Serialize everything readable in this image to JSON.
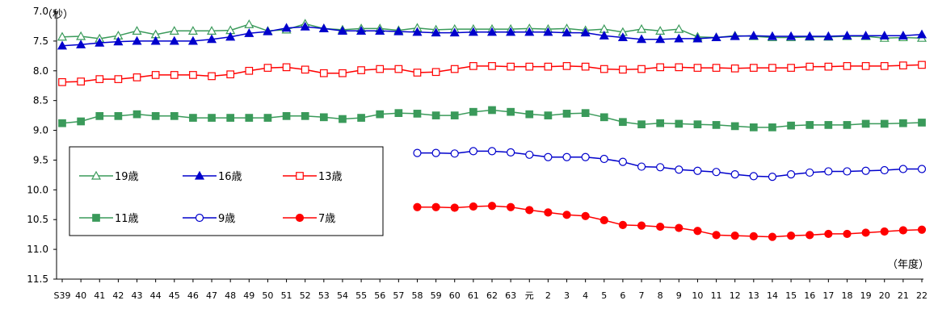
{
  "chart_data": {
    "type": "line",
    "ylabel": "（秒）",
    "xlabel": "（年度）",
    "ylim": [
      7.0,
      11.5
    ],
    "y_inverted": true,
    "y_ticks": [
      "7.0",
      "7.5",
      "8.0",
      "8.5",
      "9.0",
      "9.5",
      "10.0",
      "10.5",
      "11.0",
      "11.5"
    ],
    "categories": [
      "S39",
      "40",
      "41",
      "42",
      "43",
      "44",
      "45",
      "46",
      "47",
      "48",
      "49",
      "50",
      "51",
      "52",
      "53",
      "54",
      "55",
      "56",
      "57",
      "58",
      "59",
      "60",
      "61",
      "62",
      "63",
      "元",
      "2",
      "3",
      "4",
      "5",
      "6",
      "7",
      "8",
      "9",
      "10",
      "11",
      "12",
      "13",
      "14",
      "15",
      "16",
      "17",
      "18",
      "19",
      "20",
      "21",
      "22"
    ],
    "grid": false,
    "legend_position": "left-inside",
    "series": [
      {
        "name": "19歳",
        "color": "#3a9a5a",
        "marker": "triangle-open",
        "values": [
          7.43,
          7.42,
          7.46,
          7.41,
          7.33,
          7.39,
          7.33,
          7.33,
          7.33,
          7.32,
          7.22,
          7.33,
          7.31,
          7.21,
          7.29,
          7.31,
          7.29,
          7.29,
          7.32,
          7.28,
          7.31,
          7.3,
          7.3,
          7.3,
          7.3,
          7.29,
          7.3,
          7.29,
          7.32,
          7.3,
          7.35,
          7.3,
          7.33,
          7.3,
          7.43,
          7.44,
          7.41,
          7.42,
          7.44,
          7.44,
          7.43,
          7.43,
          7.42,
          7.42,
          7.45,
          7.44,
          7.45
        ]
      },
      {
        "name": "16歳",
        "color": "#0000cc",
        "marker": "triangle-filled",
        "values": [
          7.58,
          7.56,
          7.53,
          7.51,
          7.5,
          7.5,
          7.5,
          7.5,
          7.47,
          7.43,
          7.37,
          7.34,
          7.28,
          7.26,
          7.29,
          7.33,
          7.33,
          7.33,
          7.34,
          7.35,
          7.36,
          7.36,
          7.35,
          7.35,
          7.35,
          7.35,
          7.35,
          7.36,
          7.36,
          7.41,
          7.44,
          7.47,
          7.47,
          7.46,
          7.46,
          7.44,
          7.42,
          7.41,
          7.42,
          7.42,
          7.42,
          7.42,
          7.41,
          7.41,
          7.41,
          7.41,
          7.39
        ]
      },
      {
        "name": "13歳",
        "color": "#ff0000",
        "marker": "square-open",
        "values": [
          8.19,
          8.18,
          8.14,
          8.14,
          8.11,
          8.07,
          8.07,
          8.07,
          8.09,
          8.06,
          8.0,
          7.95,
          7.94,
          7.98,
          8.04,
          8.04,
          7.99,
          7.97,
          7.97,
          8.03,
          8.02,
          7.97,
          7.92,
          7.92,
          7.93,
          7.93,
          7.93,
          7.92,
          7.93,
          7.97,
          7.98,
          7.97,
          7.94,
          7.94,
          7.95,
          7.95,
          7.96,
          7.95,
          7.95,
          7.95,
          7.93,
          7.93,
          7.92,
          7.92,
          7.92,
          7.91,
          7.9
        ]
      },
      {
        "name": "11歳",
        "color": "#3a9a5a",
        "marker": "square-filled",
        "values": [
          8.88,
          8.85,
          8.76,
          8.76,
          8.73,
          8.76,
          8.76,
          8.79,
          8.79,
          8.79,
          8.79,
          8.79,
          8.76,
          8.76,
          8.78,
          8.81,
          8.79,
          8.73,
          8.71,
          8.72,
          8.75,
          8.75,
          8.69,
          8.66,
          8.69,
          8.73,
          8.75,
          8.72,
          8.71,
          8.78,
          8.86,
          8.9,
          8.88,
          8.89,
          8.9,
          8.91,
          8.93,
          8.95,
          8.95,
          8.92,
          8.91,
          8.91,
          8.91,
          8.89,
          8.89,
          8.88,
          8.87
        ]
      },
      {
        "name": "9歳",
        "color": "#0000cc",
        "marker": "circle-open",
        "values": [
          null,
          null,
          null,
          null,
          null,
          null,
          null,
          null,
          null,
          null,
          null,
          null,
          null,
          null,
          null,
          null,
          null,
          null,
          null,
          9.38,
          9.38,
          9.39,
          9.35,
          9.35,
          9.37,
          9.41,
          9.45,
          9.45,
          9.45,
          9.48,
          9.53,
          9.61,
          9.62,
          9.66,
          9.68,
          9.7,
          9.74,
          9.77,
          9.78,
          9.74,
          9.71,
          9.69,
          9.69,
          9.68,
          9.67,
          9.65,
          9.65
        ]
      },
      {
        "name": "7歳",
        "color": "#ff0000",
        "marker": "circle-filled",
        "values": [
          null,
          null,
          null,
          null,
          null,
          null,
          null,
          null,
          null,
          null,
          null,
          null,
          null,
          null,
          null,
          null,
          null,
          null,
          null,
          10.29,
          10.29,
          10.3,
          10.28,
          10.27,
          10.29,
          10.34,
          10.38,
          10.42,
          10.44,
          10.51,
          10.59,
          10.6,
          10.62,
          10.64,
          10.69,
          10.76,
          10.77,
          10.78,
          10.79,
          10.77,
          10.76,
          10.74,
          10.74,
          10.72,
          10.7,
          10.68,
          10.67
        ]
      }
    ]
  }
}
